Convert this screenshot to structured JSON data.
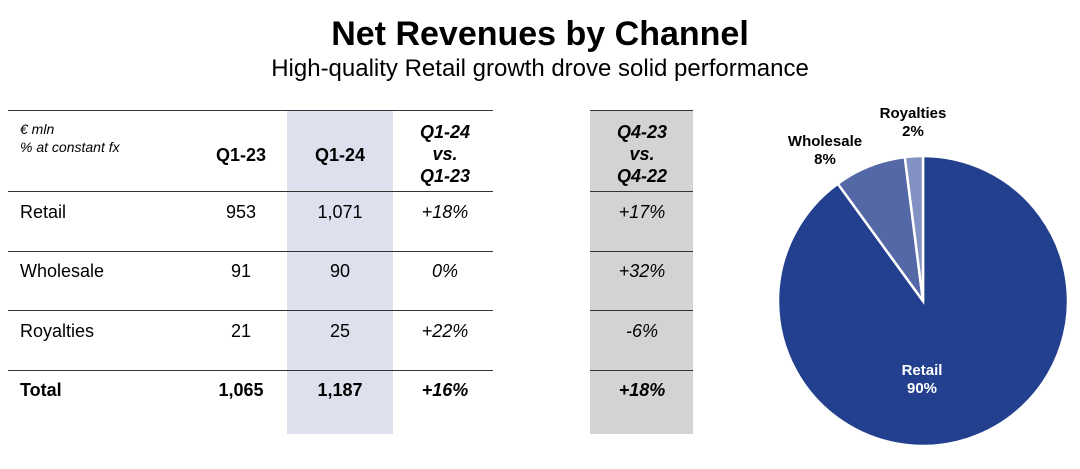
{
  "header": {
    "title": "Net Revenues by Channel",
    "subtitle": "High-quality Retail growth drove solid performance"
  },
  "table": {
    "unit_line1": "€ mln",
    "unit_line2": "% at constant fx",
    "columns": {
      "q123": "Q1-23",
      "q124": "Q1-24",
      "yoy": [
        "Q1-24",
        "vs.",
        "Q1-23"
      ],
      "q4": [
        "Q4-23",
        "vs.",
        "Q4-22"
      ]
    },
    "rows": [
      {
        "label": "Retail",
        "q123": "953",
        "q124": "1,071",
        "yoy": "+18%",
        "q4": "+17%"
      },
      {
        "label": "Wholesale",
        "q123": "91",
        "q124": "90",
        "yoy": "0%",
        "q4": "+32%"
      },
      {
        "label": "Royalties",
        "q123": "21",
        "q124": "25",
        "yoy": "+22%",
        "q4": "-6%"
      },
      {
        "label": "Total",
        "q123": "1,065",
        "q124": "1,187",
        "yoy": "+16%",
        "q4": "+18%"
      }
    ]
  },
  "chart_data": {
    "type": "pie",
    "title": "",
    "slices": [
      {
        "name": "Retail",
        "value": 90,
        "label": "90%",
        "color": "#23408e"
      },
      {
        "name": "Wholesale",
        "value": 8,
        "label": "8%",
        "color": "#5468a8"
      },
      {
        "name": "Royalties",
        "value": 2,
        "label": "2%",
        "color": "#8391c2"
      }
    ],
    "colors": {
      "slice_border": "#ffffff"
    }
  }
}
